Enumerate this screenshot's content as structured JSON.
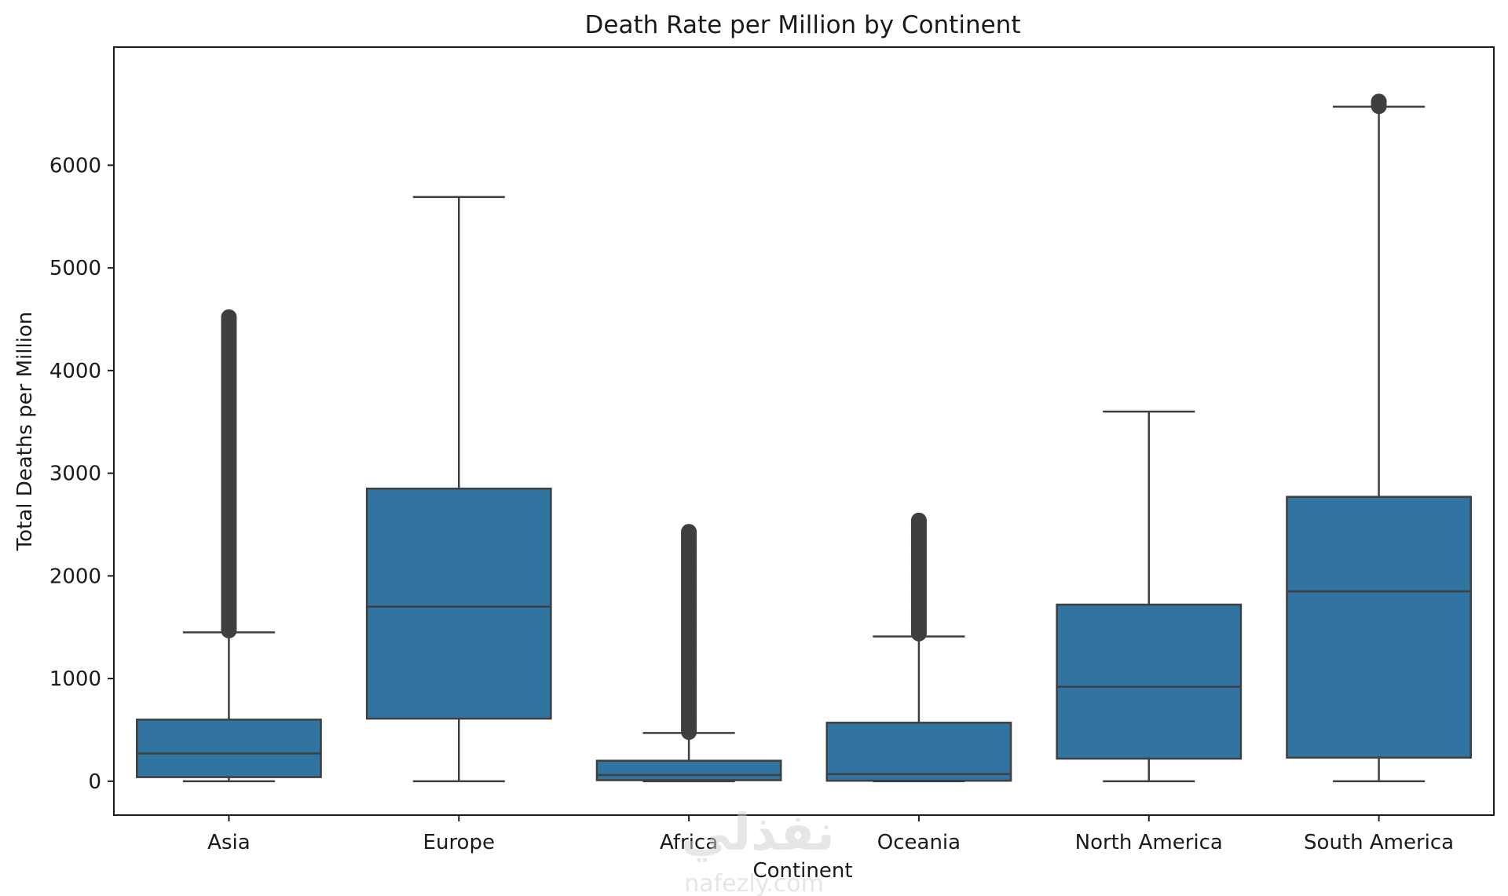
{
  "chart_data": {
    "type": "box",
    "title": "Death Rate per Million by Continent",
    "xlabel": "Continent",
    "ylabel": "Total Deaths per Million",
    "ylim": [
      -330,
      7150
    ],
    "yticks": [
      0,
      1000,
      2000,
      3000,
      4000,
      5000,
      6000
    ],
    "grid": false,
    "color": "#3274a1",
    "categories": [
      "Asia",
      "Europe",
      "Africa",
      "Oceania",
      "North America",
      "South America"
    ],
    "boxes": [
      {
        "category": "Asia",
        "min": 0,
        "q1": 40,
        "median": 270,
        "q3": 600,
        "max": 1450,
        "outliers_from": 1450,
        "outliers_to": 4520
      },
      {
        "category": "Europe",
        "min": 0,
        "q1": 610,
        "median": 1700,
        "q3": 2850,
        "max": 5690,
        "outliers_from": null,
        "outliers_to": null
      },
      {
        "category": "Africa",
        "min": 0,
        "q1": 10,
        "median": 60,
        "q3": 200,
        "max": 470,
        "outliers_from": 470,
        "outliers_to": 2430
      },
      {
        "category": "Oceania",
        "min": 0,
        "q1": 5,
        "median": 70,
        "q3": 570,
        "max": 1410,
        "outliers_from": 1430,
        "outliers_to": 2540
      },
      {
        "category": "North America",
        "min": 0,
        "q1": 220,
        "median": 920,
        "q3": 1720,
        "max": 3600,
        "outliers_from": null,
        "outliers_to": null
      },
      {
        "category": "South America",
        "min": 0,
        "q1": 230,
        "median": 1850,
        "q3": 2770,
        "max": 6570,
        "outliers_from": 6560,
        "outliers_to": 6620
      }
    ]
  },
  "watermark": {
    "arabic": "نفذلي",
    "latin": "nafezly.com"
  }
}
